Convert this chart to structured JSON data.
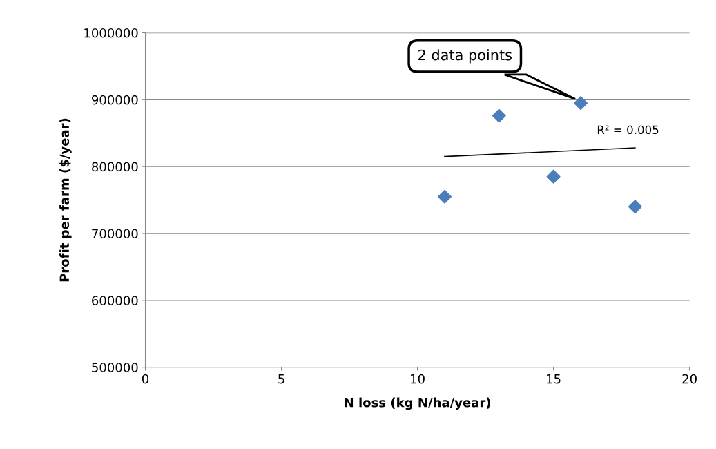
{
  "chart_data": {
    "type": "scatter",
    "xlabel": "N loss (kg N/ha/year)",
    "ylabel": "Profit per farm ($/year)",
    "x": [
      11,
      13,
      15,
      16,
      18
    ],
    "series": [
      {
        "color": "#4a7ebb",
        "values": [
          755000,
          876000,
          785000,
          895000,
          740000
        ],
        "marker": "diamond"
      },
      {
        "type": "line",
        "color": "#000000",
        "x": [
          11,
          18
        ],
        "values": [
          815000,
          828000
        ],
        "marker": "none",
        "line_style": "solid"
      }
    ],
    "xlim": [
      0,
      20
    ],
    "xticks": [
      0,
      5,
      10,
      15,
      20
    ],
    "ylim": [
      500000,
      1000000
    ],
    "yticks": [
      500000,
      600000,
      700000,
      800000,
      900000,
      1000000
    ],
    "grid": "y",
    "legend": false,
    "annotations": [
      "2 data points",
      {
        "text": "R² = 0.005",
        "x": 18,
        "y": 828000
      }
    ]
  }
}
